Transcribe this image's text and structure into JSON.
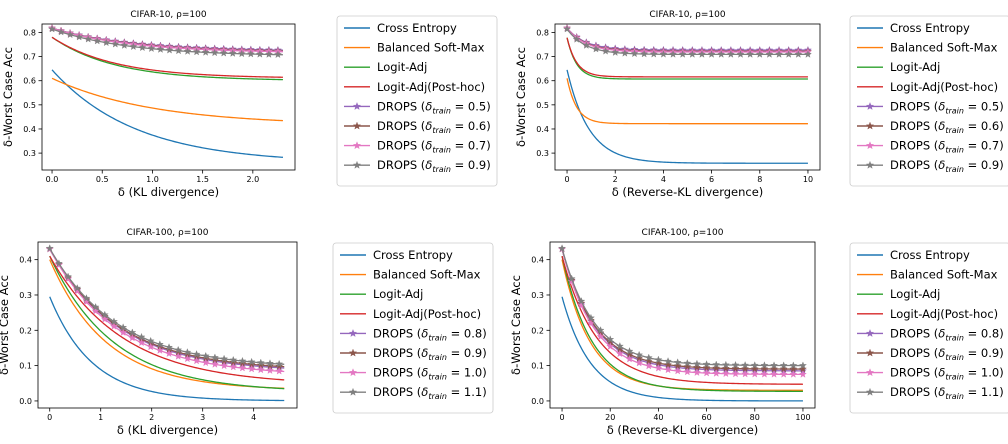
{
  "legend_labels": {
    "ce": "Cross Entropy",
    "bsm": "Balanced Soft-Max",
    "la": "Logit-Adj",
    "lap": "Logit-Adj(Post-hoc)",
    "drops_prefix": "DROPS (",
    "delta": "δ",
    "train_sub": "train",
    "drops_suffix": ")"
  },
  "colors": {
    "ce": "#1f77b4",
    "bsm": "#ff7f0e",
    "la": "#2ca02c",
    "lap": "#d62728",
    "drops": [
      "#9467bd",
      "#8c564b",
      "#e377c2",
      "#7f7f7f"
    ]
  },
  "chart_data": [
    {
      "type": "line",
      "title": "CIFAR-10, ρ=100",
      "xlabel": "δ (KL divergence)",
      "ylabel": "δ-Worst Case Acc",
      "xlim": [
        -0.1,
        2.42
      ],
      "ylim": [
        0.23,
        0.835
      ],
      "xticks": [
        0.0,
        0.5,
        1.0,
        1.5,
        2.0
      ],
      "xtick_labels": [
        "0.0",
        "0.5",
        "1.0",
        "1.5",
        "2.0"
      ],
      "yticks": [
        0.3,
        0.4,
        0.5,
        0.6,
        0.7,
        0.8
      ],
      "ytick_labels": [
        "0.3",
        "0.4",
        "0.5",
        "0.6",
        "0.7",
        "0.8"
      ],
      "x_max": 2.3,
      "marker_every": 0.09,
      "legend_placement": "outside right",
      "series": [
        {
          "key": "ce",
          "name": "Cross Entropy",
          "start": 0.645,
          "end": 0.258,
          "k": 1.2,
          "kind": "exp"
        },
        {
          "key": "bsm",
          "name": "Balanced Soft-Max",
          "start": 0.61,
          "end": 0.415,
          "k": 1.0,
          "kind": "exp"
        },
        {
          "key": "la",
          "name": "Logit-Adj",
          "start": 0.78,
          "end": 0.6,
          "k": 1.6,
          "kind": "exp"
        },
        {
          "key": "lap",
          "name": "Logit-Adj(Post-hoc)",
          "start": 0.78,
          "end": 0.61,
          "k": 1.6,
          "kind": "exp"
        },
        {
          "key": "drops",
          "idx": 0,
          "delta_train": "0.5",
          "start": 0.818,
          "end": 0.722,
          "k": 1.3,
          "kind": "exp",
          "marker": true
        },
        {
          "key": "drops",
          "idx": 1,
          "delta_train": "0.6",
          "start": 0.818,
          "end": 0.718,
          "k": 1.3,
          "kind": "exp",
          "marker": true
        },
        {
          "key": "drops",
          "idx": 2,
          "delta_train": "0.7",
          "start": 0.818,
          "end": 0.715,
          "k": 1.3,
          "kind": "exp",
          "marker": true
        },
        {
          "key": "drops",
          "idx": 3,
          "delta_train": "0.9",
          "start": 0.814,
          "end": 0.702,
          "k": 1.3,
          "kind": "exp",
          "marker": true
        }
      ]
    },
    {
      "type": "line",
      "title": "CIFAR-10, ρ=100",
      "xlabel": "δ (Reverse-KL divergence)",
      "ylabel": "δ-Worst Case Acc",
      "xlim": [
        -0.5,
        10.5
      ],
      "ylim": [
        0.23,
        0.835
      ],
      "xticks": [
        0,
        2,
        4,
        6,
        8,
        10
      ],
      "xtick_labels": [
        "0",
        "2",
        "4",
        "6",
        "8",
        "10"
      ],
      "yticks": [
        0.3,
        0.4,
        0.5,
        0.6,
        0.7,
        0.8
      ],
      "ytick_labels": [
        "0.3",
        "0.4",
        "0.5",
        "0.6",
        "0.7",
        "0.8"
      ],
      "x_max": 10,
      "marker_every": 0.4,
      "legend_placement": "outside right",
      "series": [
        {
          "key": "ce",
          "name": "Cross Entropy",
          "start": 0.645,
          "end": 0.258,
          "k": 1.1,
          "kind": "exp"
        },
        {
          "key": "bsm",
          "name": "Balanced Soft-Max",
          "start": 0.61,
          "end": 0.422,
          "k": 2.5,
          "kind": "exp"
        },
        {
          "key": "la",
          "name": "Logit-Adj",
          "start": 0.778,
          "end": 0.607,
          "k": 2.5,
          "kind": "exp"
        },
        {
          "key": "lap",
          "name": "Logit-Adj(Post-hoc)",
          "start": 0.778,
          "end": 0.616,
          "k": 2.5,
          "kind": "exp"
        },
        {
          "key": "drops",
          "idx": 0,
          "delta_train": "0.5",
          "start": 0.818,
          "end": 0.727,
          "k": 1.3,
          "kind": "exp",
          "marker": true
        },
        {
          "key": "drops",
          "idx": 1,
          "delta_train": "0.6",
          "start": 0.818,
          "end": 0.722,
          "k": 1.3,
          "kind": "exp",
          "marker": true
        },
        {
          "key": "drops",
          "idx": 2,
          "delta_train": "0.7",
          "start": 0.818,
          "end": 0.719,
          "k": 1.3,
          "kind": "exp",
          "marker": true
        },
        {
          "key": "drops",
          "idx": 3,
          "delta_train": "0.9",
          "start": 0.814,
          "end": 0.709,
          "k": 1.3,
          "kind": "exp",
          "marker": true
        }
      ]
    },
    {
      "type": "line",
      "title": "CIFAR-100, ρ=100",
      "xlabel": "δ (KL divergence)",
      "ylabel": "δ-Worst Case Acc",
      "xlim": [
        -0.23,
        4.85
      ],
      "ylim": [
        -0.02,
        0.45
      ],
      "xticks": [
        0,
        1,
        2,
        3,
        4
      ],
      "xtick_labels": [
        "0",
        "1",
        "2",
        "3",
        "4"
      ],
      "yticks": [
        0.0,
        0.1,
        0.2,
        0.3,
        0.4
      ],
      "ytick_labels": [
        "0.0",
        "0.1",
        "0.2",
        "0.3",
        "0.4"
      ],
      "x_max": 4.6,
      "marker_every": 0.18,
      "legend_placement": "outside right",
      "series": [
        {
          "key": "ce",
          "name": "Cross Entropy",
          "start": 0.295,
          "end": 0.0,
          "k": 1.2,
          "kind": "exp"
        },
        {
          "key": "bsm",
          "name": "Balanced Soft-Max",
          "start": 0.4,
          "end": 0.03,
          "k": 0.9,
          "kind": "exp"
        },
        {
          "key": "la",
          "name": "Logit-Adj",
          "start": 0.41,
          "end": 0.025,
          "k": 0.8,
          "kind": "exp"
        },
        {
          "key": "lap",
          "name": "Logit-Adj(Post-hoc)",
          "start": 0.41,
          "end": 0.045,
          "k": 0.7,
          "kind": "exp"
        },
        {
          "key": "drops",
          "idx": 0,
          "delta_train": "0.8",
          "start": 0.43,
          "end": 0.082,
          "k": 0.75,
          "kind": "exp",
          "marker": true
        },
        {
          "key": "drops",
          "idx": 1,
          "delta_train": "0.9",
          "start": 0.43,
          "end": 0.086,
          "k": 0.75,
          "kind": "exp",
          "marker": true
        },
        {
          "key": "drops",
          "idx": 2,
          "delta_train": "1.0",
          "start": 0.43,
          "end": 0.072,
          "k": 0.75,
          "kind": "exp",
          "marker": true
        },
        {
          "key": "drops",
          "idx": 3,
          "delta_train": "1.1",
          "start": 0.432,
          "end": 0.093,
          "k": 0.75,
          "kind": "exp",
          "marker": true
        }
      ]
    },
    {
      "type": "line",
      "title": "CIFAR-100, ρ=100",
      "xlabel": "δ (Reverse-KL divergence)",
      "ylabel": "δ-Worst Case Acc",
      "xlim": [
        -5,
        105
      ],
      "ylim": [
        -0.02,
        0.45
      ],
      "xticks": [
        0,
        20,
        40,
        60,
        80,
        100
      ],
      "xtick_labels": [
        "0",
        "20",
        "40",
        "60",
        "80",
        "100"
      ],
      "yticks": [
        0.0,
        0.1,
        0.2,
        0.3,
        0.4
      ],
      "ytick_labels": [
        "0.0",
        "0.1",
        "0.2",
        "0.3",
        "0.4"
      ],
      "x_max": 100,
      "marker_every": 4,
      "legend_placement": "outside right",
      "series": [
        {
          "key": "ce",
          "name": "Cross Entropy",
          "start": 0.295,
          "end": 0.0,
          "k": 0.085,
          "kind": "exp"
        },
        {
          "key": "bsm",
          "name": "Balanced Soft-Max",
          "start": 0.4,
          "end": 0.03,
          "k": 0.085,
          "kind": "exp"
        },
        {
          "key": "la",
          "name": "Logit-Adj",
          "start": 0.41,
          "end": 0.027,
          "k": 0.08,
          "kind": "exp"
        },
        {
          "key": "lap",
          "name": "Logit-Adj(Post-hoc)",
          "start": 0.41,
          "end": 0.047,
          "k": 0.07,
          "kind": "exp"
        },
        {
          "key": "drops",
          "idx": 0,
          "delta_train": "0.8",
          "start": 0.43,
          "end": 0.085,
          "k": 0.075,
          "kind": "exp",
          "marker": true
        },
        {
          "key": "drops",
          "idx": 1,
          "delta_train": "0.9",
          "start": 0.43,
          "end": 0.09,
          "k": 0.075,
          "kind": "exp",
          "marker": true
        },
        {
          "key": "drops",
          "idx": 2,
          "delta_train": "1.0",
          "start": 0.43,
          "end": 0.075,
          "k": 0.075,
          "kind": "exp",
          "marker": true
        },
        {
          "key": "drops",
          "idx": 3,
          "delta_train": "1.1",
          "start": 0.432,
          "end": 0.1,
          "k": 0.075,
          "kind": "exp",
          "marker": true
        }
      ]
    }
  ]
}
